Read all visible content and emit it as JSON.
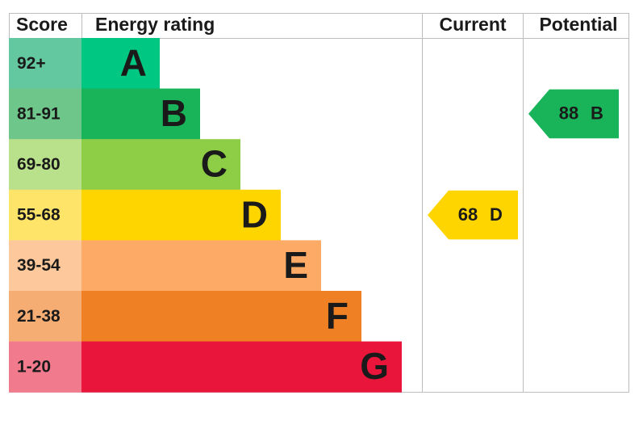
{
  "header": {
    "score": "Score",
    "rating": "Energy rating",
    "current": "Current",
    "potential": "Potential"
  },
  "bands": [
    {
      "score": "92+",
      "letter": "A",
      "color": "#00c781",
      "score_color": "#63c8a0"
    },
    {
      "score": "81-91",
      "letter": "B",
      "color": "#19b459",
      "score_color": "#6ec68a"
    },
    {
      "score": "69-80",
      "letter": "C",
      "color": "#8dce46",
      "score_color": "#b9e08a"
    },
    {
      "score": "55-68",
      "letter": "D",
      "color": "#ffd500",
      "score_color": "#ffe46a"
    },
    {
      "score": "39-54",
      "letter": "E",
      "color": "#fcaa65",
      "score_color": "#fdc99c"
    },
    {
      "score": "21-38",
      "letter": "F",
      "color": "#ef8023",
      "score_color": "#f5ad74"
    },
    {
      "score": "1-20",
      "letter": "G",
      "color": "#e9153b",
      "score_color": "#f27a8d"
    }
  ],
  "current": {
    "value": 68,
    "letter": "D",
    "color": "#ffd500"
  },
  "potential": {
    "value": 88,
    "letter": "B",
    "color": "#19b459"
  }
}
